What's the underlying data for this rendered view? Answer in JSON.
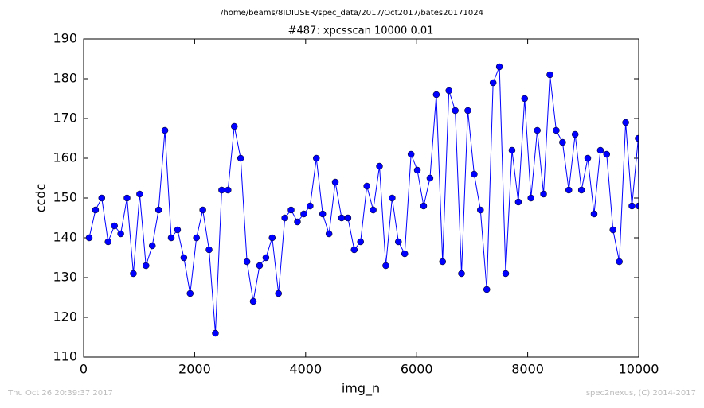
{
  "chart_data": {
    "type": "line",
    "suptitle": "/home/beams/8IDIUSER/spec_data/2017/Oct2017/bates20171024",
    "title": "#487: xpcsscan 10000 0.01",
    "xlabel": "img_n",
    "ylabel": "ccdc",
    "timestamp": "Thu Oct 26 20:39:37 2017",
    "credit": "spec2nexus, (C) 2014-2017",
    "xlim": [
      0,
      10000
    ],
    "xticks": [
      0,
      2000,
      4000,
      6000,
      8000,
      10000
    ],
    "ylim": [
      110,
      190
    ],
    "yticks": [
      110,
      120,
      130,
      140,
      150,
      160,
      170,
      180,
      190
    ],
    "x": [
      100,
      214,
      327,
      441,
      555,
      669,
      782,
      896,
      1010,
      1123,
      1237,
      1351,
      1464,
      1578,
      1692,
      1806,
      1919,
      2033,
      2147,
      2260,
      2374,
      2488,
      2601,
      2715,
      2829,
      2943,
      3056,
      3170,
      3284,
      3397,
      3511,
      3625,
      3738,
      3852,
      3966,
      4080,
      4193,
      4307,
      4421,
      4534,
      4648,
      4762,
      4875,
      4989,
      5103,
      5217,
      5330,
      5444,
      5558,
      5671,
      5785,
      5899,
      6012,
      6126,
      6240,
      6354,
      6467,
      6581,
      6695,
      6808,
      6922,
      7036,
      7149,
      7263,
      7377,
      7491,
      7604,
      7718,
      7832,
      7945,
      8059,
      8173,
      8286,
      8400,
      8514,
      8628,
      8741,
      8855,
      8969,
      9082,
      9196,
      9310,
      9423,
      9537,
      9651,
      9765,
      9878,
      9992,
      10000
    ],
    "series": [
      {
        "color": "#0000ff",
        "values": [
          140,
          147,
          150,
          139,
          143,
          141,
          150,
          131,
          151,
          133,
          138,
          147,
          167,
          140,
          142,
          135,
          126,
          140,
          147,
          137,
          116,
          152,
          152,
          168,
          160,
          134,
          124,
          133,
          135,
          140,
          126,
          145,
          147,
          144,
          146,
          148,
          160,
          146,
          141,
          154,
          145,
          145,
          137,
          139,
          153,
          147,
          158,
          133,
          150,
          139,
          136,
          161,
          157,
          148,
          155,
          176,
          134,
          177,
          172,
          131,
          172,
          156,
          147,
          127,
          179,
          183,
          131,
          162,
          149,
          175,
          150,
          167,
          151,
          181,
          167,
          164,
          152,
          166,
          152,
          160,
          146,
          162,
          161,
          142,
          134,
          169,
          148,
          165,
          148
        ]
      }
    ]
  }
}
